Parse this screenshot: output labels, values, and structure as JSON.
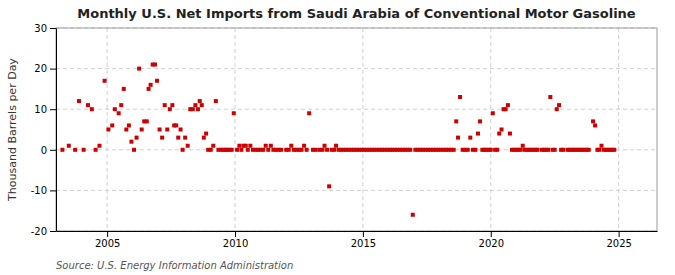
{
  "chart_data": {
    "type": "scatter",
    "title": "Monthly U.S. Net Imports from Saudi Arabia of Conventional Motor Gasoline",
    "ylabel": "Thousand Barrels per Day",
    "annotation": "Source: U.S. Energy Information Administration",
    "color": "#cc0000",
    "grid": true,
    "xlim": [
      2003.0,
      2026.5
    ],
    "xticks": [
      2005,
      2010,
      2015,
      2020,
      2025
    ],
    "ylim": [
      -20,
      30
    ],
    "yticks": [
      -20,
      -10,
      0,
      10,
      20,
      30
    ],
    "x": [
      2003.25,
      2003.5,
      2003.75,
      2003.9,
      2004.08,
      2004.25,
      2004.4,
      2004.55,
      2004.7,
      2004.9,
      2005.05,
      2005.2,
      2005.3,
      2005.45,
      2005.55,
      2005.65,
      2005.75,
      2005.85,
      2005.95,
      2006.05,
      2006.15,
      2006.25,
      2006.35,
      2006.45,
      2006.55,
      2006.62,
      2006.7,
      2006.78,
      2006.87,
      2006.95,
      2007.05,
      2007.15,
      2007.25,
      2007.35,
      2007.45,
      2007.55,
      2007.62,
      2007.7,
      2007.78,
      2007.87,
      2007.95,
      2008.05,
      2008.15,
      2008.25,
      2008.35,
      2008.45,
      2008.55,
      2008.62,
      2008.7,
      2008.78,
      2008.87,
      2008.95,
      2009.05,
      2009.15,
      2009.25,
      2009.35,
      2009.45,
      2009.55,
      2009.62,
      2009.7,
      2009.78,
      2009.87,
      2009.95,
      2010.08,
      2010.17,
      2010.25,
      2010.33,
      2010.42,
      2010.5,
      2010.6,
      2010.7,
      2010.8,
      2010.9,
      2011.0,
      2011.1,
      2011.2,
      2011.3,
      2011.4,
      2011.5,
      2011.6,
      2011.7,
      2011.8,
      2012.0,
      2012.1,
      2012.2,
      2012.3,
      2012.4,
      2012.5,
      2012.6,
      2012.7,
      2012.8,
      2012.9,
      2013.05,
      2013.15,
      2013.3,
      2013.42,
      2013.5,
      2013.6,
      2013.68,
      2013.78,
      2013.88,
      2013.95,
      2014.05,
      2014.15,
      2014.25,
      2014.35,
      2014.45,
      2014.55,
      2014.65,
      2014.75,
      2014.85,
      2014.95,
      2015.05,
      2015.15,
      2015.25,
      2015.35,
      2015.45,
      2015.55,
      2015.65,
      2015.75,
      2015.85,
      2015.95,
      2016.05,
      2016.15,
      2016.25,
      2016.35,
      2016.45,
      2016.55,
      2016.65,
      2016.75,
      2016.85,
      2016.95,
      2017.05,
      2017.15,
      2017.25,
      2017.35,
      2017.45,
      2017.55,
      2017.65,
      2017.75,
      2017.85,
      2017.95,
      2018.05,
      2018.15,
      2018.25,
      2018.35,
      2018.45,
      2018.55,
      2018.65,
      2018.72,
      2018.8,
      2018.9,
      2019.0,
      2019.1,
      2019.2,
      2019.3,
      2019.4,
      2019.5,
      2019.58,
      2019.67,
      2019.75,
      2019.83,
      2019.92,
      2020.0,
      2020.08,
      2020.17,
      2020.25,
      2020.33,
      2020.42,
      2020.5,
      2020.58,
      2020.67,
      2020.75,
      2020.83,
      2020.92,
      2021.0,
      2021.08,
      2021.17,
      2021.25,
      2021.33,
      2021.42,
      2021.5,
      2021.58,
      2021.67,
      2021.75,
      2021.83,
      2022.0,
      2022.08,
      2022.17,
      2022.25,
      2022.33,
      2022.42,
      2022.5,
      2022.58,
      2022.67,
      2022.75,
      2022.83,
      2023.0,
      2023.08,
      2023.17,
      2023.25,
      2023.33,
      2023.42,
      2023.5,
      2023.58,
      2023.67,
      2023.75,
      2023.83,
      2024.0,
      2024.08,
      2024.17,
      2024.25,
      2024.33,
      2024.42,
      2024.5,
      2024.58,
      2024.67,
      2024.75,
      2024.83
    ],
    "values": [
      0,
      1,
      0,
      12,
      0,
      11,
      10,
      0,
      1,
      17,
      5,
      6,
      10,
      9,
      11,
      15,
      5,
      6,
      2,
      0,
      3,
      20,
      5,
      7,
      7,
      15,
      16,
      21,
      21,
      17,
      5,
      3,
      11,
      5,
      10,
      11,
      6,
      6,
      3,
      5,
      0,
      3,
      1,
      10,
      10,
      11,
      10,
      12,
      11,
      3,
      4,
      0,
      0,
      1,
      12,
      0,
      0,
      0,
      0,
      0,
      0,
      0,
      9,
      0,
      1,
      0,
      1,
      1,
      0,
      1,
      0,
      0,
      0,
      0,
      0,
      1,
      0,
      1,
      0,
      0,
      0,
      0,
      0,
      0,
      1,
      0,
      0,
      0,
      0,
      1,
      0,
      9,
      0,
      0,
      0,
      0,
      1,
      0,
      -9,
      0,
      0,
      1,
      0,
      0,
      0,
      0,
      0,
      0,
      0,
      0,
      0,
      0,
      0,
      0,
      0,
      0,
      0,
      0,
      0,
      0,
      0,
      0,
      0,
      0,
      0,
      0,
      0,
      0,
      0,
      0,
      0,
      -16,
      0,
      0,
      0,
      0,
      0,
      0,
      0,
      0,
      0,
      0,
      0,
      0,
      0,
      0,
      0,
      0,
      7,
      3,
      13,
      0,
      0,
      0,
      3,
      0,
      0,
      4,
      7,
      0,
      0,
      0,
      0,
      0,
      9,
      0,
      0,
      4,
      5,
      10,
      10,
      11,
      4,
      0,
      0,
      0,
      0,
      0,
      1,
      0,
      0,
      0,
      0,
      0,
      0,
      0,
      0,
      0,
      0,
      0,
      13,
      0,
      0,
      10,
      11,
      0,
      0,
      0,
      0,
      0,
      0,
      0,
      0,
      0,
      0,
      0,
      0,
      0,
      7,
      6,
      0,
      0,
      1,
      0,
      0,
      0,
      0,
      0,
      0
    ]
  }
}
